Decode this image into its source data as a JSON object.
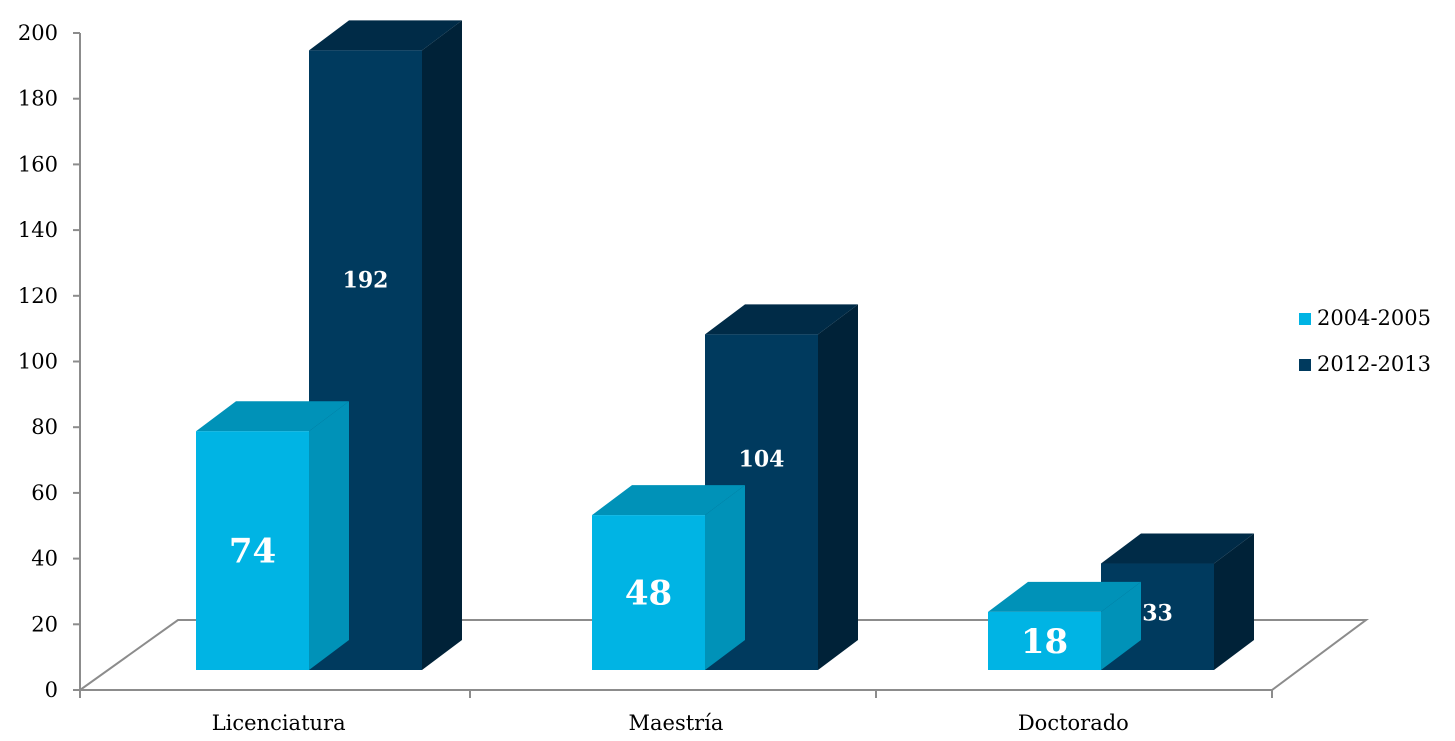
{
  "colors": {
    "series_2004_front": "#00b4e4",
    "series_2004_top": "#0092b8",
    "series_2012_front": "#003a5e",
    "series_2012_top": "#002b47",
    "series_2012_side": "#002238",
    "axis": "#8c8c8c"
  },
  "chart_data": {
    "type": "bar",
    "style": "3d-clustered-column",
    "title": "",
    "xlabel": "",
    "ylabel": "",
    "categories": [
      "Licenciatura",
      "Maestría",
      "Doctorado"
    ],
    "series": [
      {
        "name": "2004-2005",
        "values": [
          74,
          48,
          18
        ],
        "labels": [
          "74",
          "48",
          "18"
        ]
      },
      {
        "name": "2012-2013",
        "values": [
          192,
          104,
          33
        ],
        "labels": [
          "192",
          "104",
          "33"
        ]
      }
    ],
    "ylim": [
      0,
      200
    ],
    "yticks": [
      "0",
      "20",
      "40",
      "60",
      "80",
      "100",
      "120",
      "140",
      "160",
      "180",
      "200"
    ],
    "grid": false,
    "legend_position": "right"
  }
}
